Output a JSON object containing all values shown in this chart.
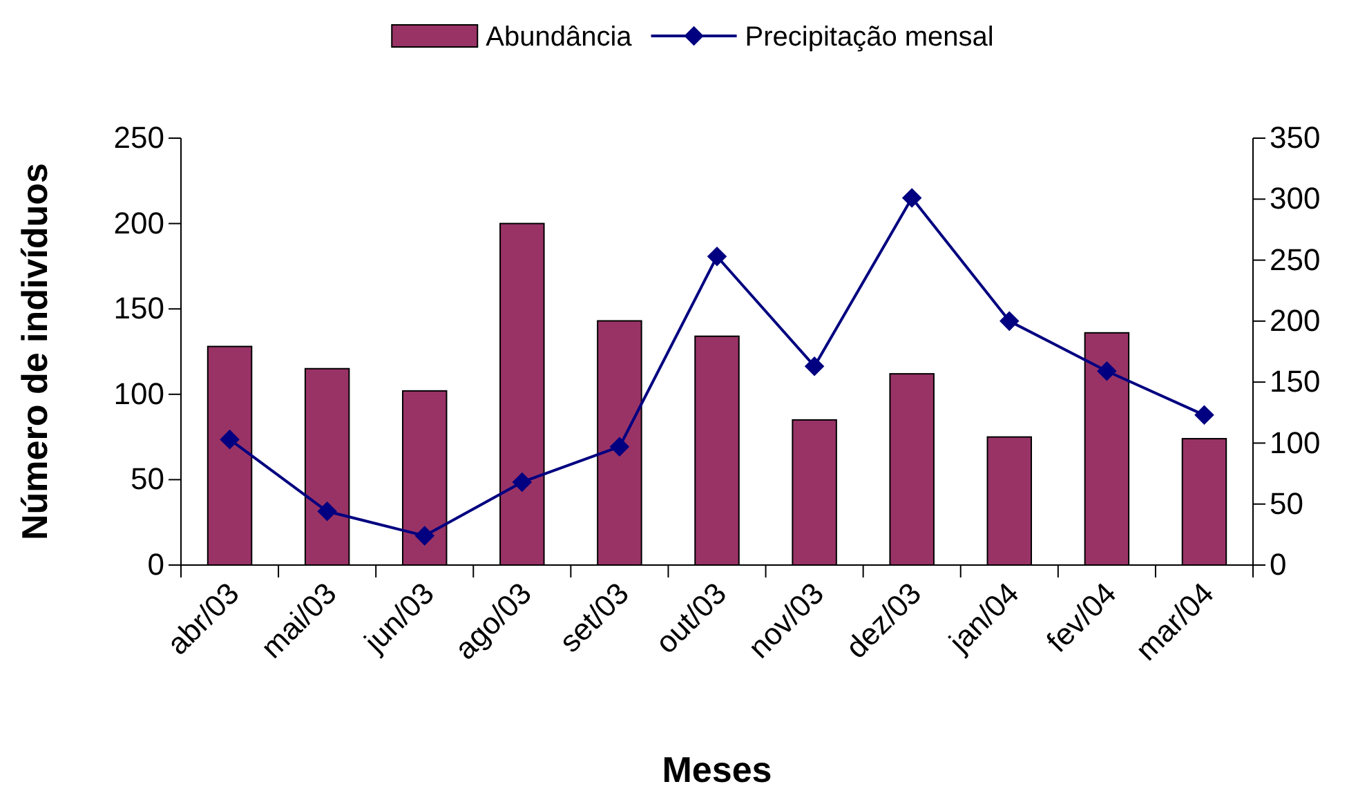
{
  "chart_data": {
    "type": "bar",
    "xlabel": "Meses",
    "ylabel": "Número de indivíduos",
    "categories": [
      "abr/03",
      "mai/03",
      "jun/03",
      "ago/03",
      "set/03",
      "out/03",
      "nov/03",
      "dez/03",
      "jan/04",
      "fev/04",
      "mar/04"
    ],
    "series": [
      {
        "name": "Abundância",
        "color": "#993366",
        "values": [
          128,
          115,
          102,
          200,
          143,
          134,
          85,
          112,
          75,
          136,
          74
        ]
      },
      {
        "name": "Precipitação mensal",
        "type": "line",
        "axis": "y2",
        "color": "#000080",
        "marker": "diamond",
        "values": [
          103,
          44,
          24,
          68,
          97,
          253,
          163,
          301,
          200,
          159,
          123
        ]
      }
    ],
    "ylim": [
      0,
      250
    ],
    "yticks": [
      0,
      50,
      100,
      150,
      200,
      250
    ],
    "y2lim": [
      0,
      350
    ],
    "y2ticks": [
      0,
      50,
      100,
      150,
      200,
      250,
      300,
      350
    ],
    "grid": false,
    "legend": "top"
  }
}
